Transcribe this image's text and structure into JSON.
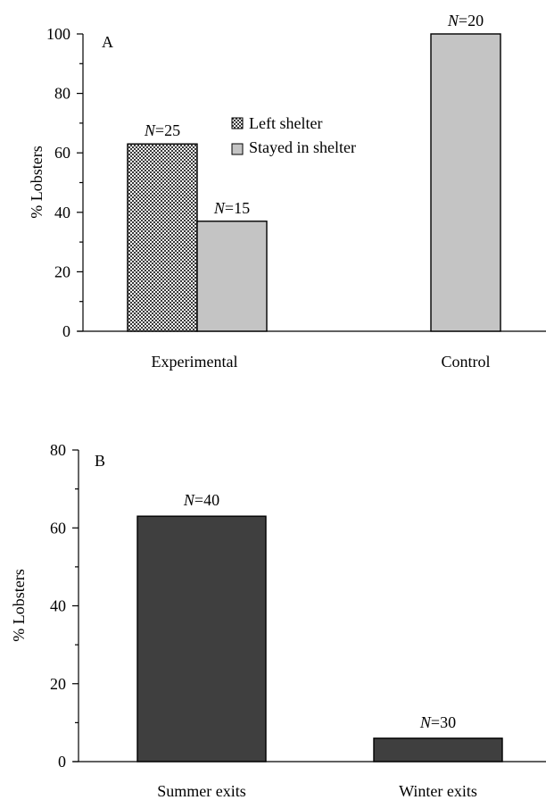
{
  "chart_data": [
    {
      "type": "bar",
      "panel_label": "A",
      "ylabel": "% Lobsters",
      "ylim": [
        0,
        100
      ],
      "yticks": [
        0,
        20,
        40,
        60,
        80,
        100
      ],
      "categories": [
        "Experimental",
        "Control"
      ],
      "series": [
        {
          "name": "Left shelter",
          "values": [
            63,
            null
          ],
          "n_labels": [
            "N=25",
            null
          ]
        },
        {
          "name": "Stayed in shelter",
          "values": [
            37,
            100
          ],
          "n_labels": [
            "N=15",
            "N=20"
          ]
        }
      ],
      "legend_placement": "top-center",
      "colors": {
        "left_shelter": "#3a3a3a",
        "stayed": "#c4c4c4"
      }
    },
    {
      "type": "bar",
      "panel_label": "B",
      "ylabel": "% Lobsters",
      "ylim": [
        0,
        80
      ],
      "yticks": [
        0,
        20,
        40,
        60,
        80
      ],
      "categories": [
        "Summer exits",
        "Winter exits"
      ],
      "series": [
        {
          "values": [
            63,
            6
          ],
          "n_labels": [
            "N=40",
            "N=30"
          ]
        }
      ],
      "colors": {
        "bar": "#3f3f3f"
      }
    }
  ]
}
